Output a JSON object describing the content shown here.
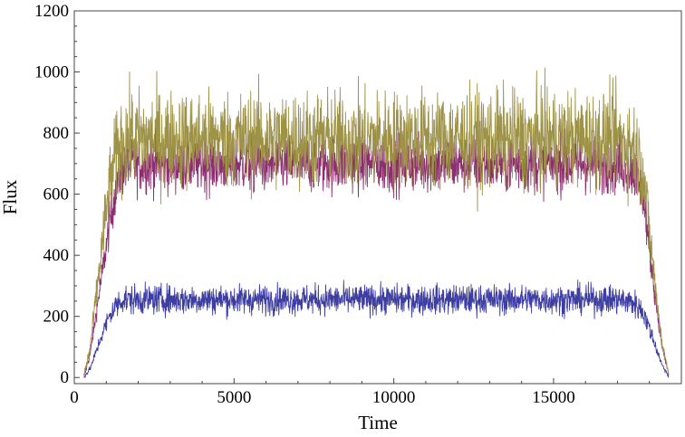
{
  "chart_data": {
    "type": "line",
    "title": "",
    "xlabel": "Time",
    "ylabel": "Flux",
    "xlim": [
      0,
      19000
    ],
    "ylim": [
      -20,
      1200
    ],
    "x_ticks": [
      {
        "value": 0,
        "label": "0"
      },
      {
        "value": 5000,
        "label": "5000"
      },
      {
        "value": 10000,
        "label": "10000"
      },
      {
        "value": 15000,
        "label": "15000"
      }
    ],
    "y_ticks": [
      {
        "value": 0,
        "label": "0"
      },
      {
        "value": 200,
        "label": "200"
      },
      {
        "value": 400,
        "label": "400"
      },
      {
        "value": 600,
        "label": "600"
      },
      {
        "value": 800,
        "label": "800"
      },
      {
        "value": 1000,
        "label": "1000"
      },
      {
        "value": 1200,
        "label": "1200"
      }
    ],
    "grid": false,
    "legend": "none",
    "series": [
      {
        "color": "#8b2f70",
        "x": [
          300,
          500,
          700,
          900,
          1100,
          1300,
          1500,
          2000,
          3000,
          4000,
          5000,
          6000,
          7000,
          8000,
          9000,
          10000,
          11000,
          12000,
          13000,
          14000,
          15000,
          16000,
          17000,
          17500,
          17800,
          18000,
          18200,
          18400,
          18600
        ],
        "values": [
          0,
          80,
          220,
          360,
          500,
          620,
          690,
          700,
          700,
          700,
          700,
          700,
          700,
          700,
          700,
          700,
          700,
          700,
          700,
          700,
          700,
          700,
          700,
          680,
          600,
          420,
          250,
          100,
          10
        ],
        "noise": 90
      },
      {
        "color": "#9e9246",
        "x": [
          300,
          500,
          700,
          900,
          1100,
          1300,
          1500,
          2000,
          3000,
          4000,
          5000,
          6000,
          7000,
          8000,
          9000,
          10000,
          11000,
          12000,
          13000,
          14000,
          15000,
          16000,
          17000,
          17500,
          17800,
          18000,
          18200,
          18400,
          18600
        ],
        "values": [
          0,
          100,
          280,
          460,
          620,
          720,
          780,
          780,
          780,
          780,
          780,
          780,
          780,
          780,
          780,
          780,
          780,
          780,
          780,
          780,
          780,
          780,
          780,
          760,
          680,
          480,
          280,
          110,
          10
        ],
        "noise": 150
      },
      {
        "color": "#3e3ea2",
        "x": [
          300,
          500,
          700,
          900,
          1100,
          1300,
          1500,
          2000,
          3000,
          4000,
          5000,
          6000,
          7000,
          8000,
          9000,
          10000,
          11000,
          12000,
          13000,
          14000,
          15000,
          16000,
          17000,
          17500,
          17800,
          18000,
          18200,
          18400,
          18600
        ],
        "values": [
          0,
          30,
          90,
          150,
          200,
          235,
          255,
          255,
          255,
          255,
          255,
          255,
          255,
          255,
          255,
          255,
          255,
          255,
          255,
          255,
          255,
          255,
          255,
          245,
          215,
          160,
          100,
          40,
          5
        ],
        "noise": 45
      }
    ]
  }
}
